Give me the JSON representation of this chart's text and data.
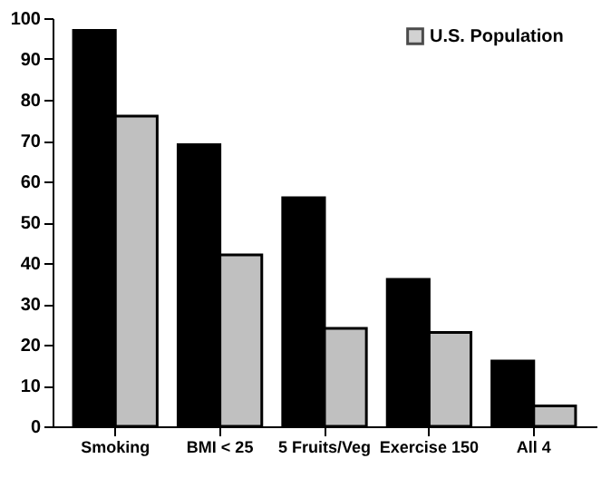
{
  "chart_data": {
    "type": "bar",
    "categories": [
      "Smoking",
      "BMI < 25",
      "5 Fruits/Veg",
      "Exercise 150",
      "All 4"
    ],
    "series": [
      {
        "color": "#000000",
        "values": [
          97,
          69,
          56,
          36,
          16
        ]
      },
      {
        "name": "U.S. Population",
        "color": "#c0c0c0",
        "values": [
          76,
          42,
          24,
          23,
          5
        ]
      }
    ],
    "ylim": [
      0,
      100
    ],
    "yticks": [
      0,
      10,
      20,
      30,
      40,
      50,
      60,
      70,
      80,
      90,
      100
    ],
    "grid": false,
    "legend": "top right"
  }
}
